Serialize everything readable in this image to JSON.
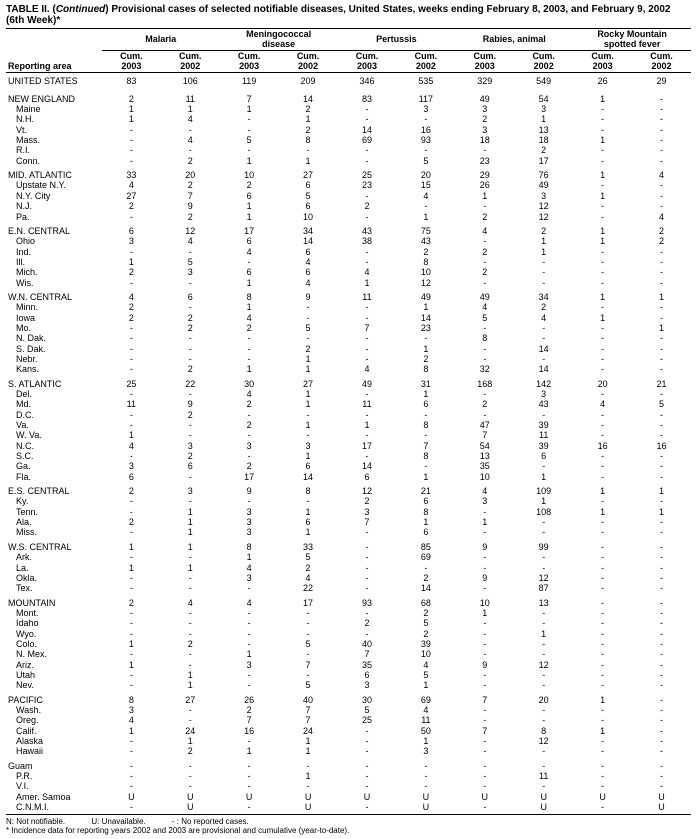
{
  "title_a": "TABLE II. (",
  "title_b": "Continued",
  "title_c": ") Provisional cases of selected notifiable diseases, United States, weeks ending February 8, 2003, and February 9, 2002",
  "title_d": "(6th Week)*",
  "reporting_area": "Reporting area",
  "diseases": [
    "Malaria",
    "Meningococcal disease",
    "Pertussis",
    "Rabies, animal",
    "Rocky Mountain spotted fever"
  ],
  "sub_headers": [
    "Cum. 2003",
    "Cum. 2002"
  ],
  "footnote_a": "N: Not notifiable.",
  "footnote_b": "U: Unavailable.",
  "footnote_c": "- : No reported cases.",
  "footnote_d": "* Incidence data for reporting years 2002 and 2003 are provisional and cumulative (year-to-date).",
  "colw": {
    "area": "14%",
    "col": "8.6%"
  },
  "rows": [
    {
      "g": 2,
      "a": "UNITED STATES",
      "v": [
        "83",
        "106",
        "119",
        "209",
        "346",
        "535",
        "329",
        "549",
        "26",
        "29"
      ]
    },
    {
      "g": 1,
      "a": "NEW ENGLAND",
      "v": [
        "2",
        "11",
        "7",
        "14",
        "83",
        "117",
        "49",
        "54",
        "1",
        "-"
      ]
    },
    {
      "g": 0,
      "a": "Maine",
      "v": [
        "1",
        "1",
        "1",
        "2",
        "-",
        "3",
        "3",
        "3",
        "-",
        "-"
      ]
    },
    {
      "g": 0,
      "a": "N.H.",
      "v": [
        "1",
        "4",
        "-",
        "1",
        "-",
        "-",
        "2",
        "1",
        "-",
        "-"
      ]
    },
    {
      "g": 0,
      "a": "Vt.",
      "v": [
        "-",
        "-",
        "-",
        "2",
        "14",
        "16",
        "3",
        "13",
        "-",
        "-"
      ]
    },
    {
      "g": 0,
      "a": "Mass.",
      "v": [
        "-",
        "4",
        "5",
        "8",
        "69",
        "93",
        "18",
        "18",
        "1",
        "-"
      ]
    },
    {
      "g": 0,
      "a": "R.I.",
      "v": [
        "-",
        "-",
        "-",
        "-",
        "-",
        "-",
        "-",
        "2",
        "-",
        "-"
      ]
    },
    {
      "g": 0,
      "a": "Conn.",
      "v": [
        "-",
        "2",
        "1",
        "1",
        "-",
        "5",
        "23",
        "17",
        "-",
        "-"
      ]
    },
    {
      "g": 1,
      "a": "MID. ATLANTIC",
      "v": [
        "33",
        "20",
        "10",
        "27",
        "25",
        "20",
        "29",
        "76",
        "1",
        "4"
      ]
    },
    {
      "g": 0,
      "a": "Upstate N.Y.",
      "v": [
        "4",
        "2",
        "2",
        "6",
        "23",
        "15",
        "26",
        "49",
        "-",
        "-"
      ]
    },
    {
      "g": 0,
      "a": "N.Y. City",
      "v": [
        "27",
        "7",
        "6",
        "5",
        "-",
        "4",
        "1",
        "3",
        "1",
        "-"
      ]
    },
    {
      "g": 0,
      "a": "N.J.",
      "v": [
        "2",
        "9",
        "1",
        "6",
        "2",
        "-",
        "-",
        "12",
        "-",
        "-"
      ]
    },
    {
      "g": 0,
      "a": "Pa.",
      "v": [
        "-",
        "2",
        "1",
        "10",
        "-",
        "1",
        "2",
        "12",
        "-",
        "4"
      ]
    },
    {
      "g": 1,
      "a": "E.N. CENTRAL",
      "v": [
        "6",
        "12",
        "17",
        "34",
        "43",
        "75",
        "4",
        "2",
        "1",
        "2"
      ]
    },
    {
      "g": 0,
      "a": "Ohio",
      "v": [
        "3",
        "4",
        "6",
        "14",
        "38",
        "43",
        "-",
        "1",
        "1",
        "2"
      ]
    },
    {
      "g": 0,
      "a": "Ind.",
      "v": [
        "-",
        "-",
        "4",
        "6",
        "-",
        "2",
        "2",
        "1",
        "-",
        "-"
      ]
    },
    {
      "g": 0,
      "a": "Ill.",
      "v": [
        "1",
        "5",
        "-",
        "4",
        "-",
        "8",
        "-",
        "-",
        "-",
        "-"
      ]
    },
    {
      "g": 0,
      "a": "Mich.",
      "v": [
        "2",
        "3",
        "6",
        "6",
        "4",
        "10",
        "2",
        "-",
        "-",
        "-"
      ]
    },
    {
      "g": 0,
      "a": "Wis.",
      "v": [
        "-",
        "-",
        "1",
        "4",
        "1",
        "12",
        "-",
        "-",
        "-",
        "-"
      ]
    },
    {
      "g": 1,
      "a": "W.N. CENTRAL",
      "v": [
        "4",
        "6",
        "8",
        "9",
        "11",
        "49",
        "49",
        "34",
        "1",
        "1"
      ]
    },
    {
      "g": 0,
      "a": "Minn.",
      "v": [
        "2",
        "-",
        "1",
        "-",
        "-",
        "1",
        "4",
        "2",
        "-",
        "-"
      ]
    },
    {
      "g": 0,
      "a": "Iowa",
      "v": [
        "2",
        "2",
        "4",
        "-",
        "-",
        "14",
        "5",
        "4",
        "1",
        "-"
      ]
    },
    {
      "g": 0,
      "a": "Mo.",
      "v": [
        "-",
        "2",
        "2",
        "5",
        "7",
        "23",
        "-",
        "-",
        "-",
        "1"
      ]
    },
    {
      "g": 0,
      "a": "N. Dak.",
      "v": [
        "-",
        "-",
        "-",
        "-",
        "-",
        "-",
        "8",
        "-",
        "-",
        "-"
      ]
    },
    {
      "g": 0,
      "a": "S. Dak.",
      "v": [
        "-",
        "-",
        "-",
        "2",
        "-",
        "1",
        "-",
        "14",
        "-",
        "-"
      ]
    },
    {
      "g": 0,
      "a": "Nebr.",
      "v": [
        "-",
        "-",
        "-",
        "1",
        "-",
        "2",
        "-",
        "-",
        "-",
        "-"
      ]
    },
    {
      "g": 0,
      "a": "Kans.",
      "v": [
        "-",
        "2",
        "1",
        "1",
        "4",
        "8",
        "32",
        "14",
        "-",
        "-"
      ]
    },
    {
      "g": 1,
      "a": "S. ATLANTIC",
      "v": [
        "25",
        "22",
        "30",
        "27",
        "49",
        "31",
        "168",
        "142",
        "20",
        "21"
      ]
    },
    {
      "g": 0,
      "a": "Del.",
      "v": [
        "-",
        "-",
        "4",
        "1",
        "-",
        "1",
        "-",
        "3",
        "-",
        "-"
      ]
    },
    {
      "g": 0,
      "a": "Md.",
      "v": [
        "11",
        "9",
        "2",
        "1",
        "11",
        "6",
        "2",
        "43",
        "4",
        "5"
      ]
    },
    {
      "g": 0,
      "a": "D.C.",
      "v": [
        "-",
        "2",
        "-",
        "-",
        "-",
        "-",
        "-",
        "-",
        "-",
        "-"
      ]
    },
    {
      "g": 0,
      "a": "Va.",
      "v": [
        "-",
        "-",
        "2",
        "1",
        "1",
        "8",
        "47",
        "39",
        "-",
        "-"
      ]
    },
    {
      "g": 0,
      "a": "W. Va.",
      "v": [
        "1",
        "-",
        "-",
        "-",
        "-",
        "-",
        "7",
        "11",
        "-",
        "-"
      ]
    },
    {
      "g": 0,
      "a": "N.C.",
      "v": [
        "4",
        "3",
        "3",
        "3",
        "17",
        "7",
        "54",
        "39",
        "16",
        "16"
      ]
    },
    {
      "g": 0,
      "a": "S.C.",
      "v": [
        "-",
        "2",
        "-",
        "1",
        "-",
        "8",
        "13",
        "6",
        "-",
        "-"
      ]
    },
    {
      "g": 0,
      "a": "Ga.",
      "v": [
        "3",
        "6",
        "2",
        "6",
        "14",
        "-",
        "35",
        "-",
        "-",
        "-"
      ]
    },
    {
      "g": 0,
      "a": "Fla.",
      "v": [
        "6",
        "-",
        "17",
        "14",
        "6",
        "1",
        "10",
        "1",
        "-",
        "-"
      ]
    },
    {
      "g": 1,
      "a": "E.S. CENTRAL",
      "v": [
        "2",
        "3",
        "9",
        "8",
        "12",
        "21",
        "4",
        "109",
        "1",
        "1"
      ]
    },
    {
      "g": 0,
      "a": "Ky.",
      "v": [
        "-",
        "-",
        "-",
        "-",
        "2",
        "6",
        "3",
        "1",
        "-",
        "-"
      ]
    },
    {
      "g": 0,
      "a": "Tenn.",
      "v": [
        "-",
        "1",
        "3",
        "1",
        "3",
        "8",
        "-",
        "108",
        "1",
        "1"
      ]
    },
    {
      "g": 0,
      "a": "Ala.",
      "v": [
        "2",
        "1",
        "3",
        "6",
        "7",
        "1",
        "1",
        "-",
        "-",
        "-"
      ]
    },
    {
      "g": 0,
      "a": "Miss.",
      "v": [
        "-",
        "1",
        "3",
        "1",
        "-",
        "6",
        "-",
        "-",
        "-",
        "-"
      ]
    },
    {
      "g": 1,
      "a": "W.S. CENTRAL",
      "v": [
        "1",
        "1",
        "8",
        "33",
        "-",
        "85",
        "9",
        "99",
        "-",
        "-"
      ]
    },
    {
      "g": 0,
      "a": "Ark.",
      "v": [
        "-",
        "-",
        "1",
        "5",
        "-",
        "69",
        "-",
        "-",
        "-",
        "-"
      ]
    },
    {
      "g": 0,
      "a": "La.",
      "v": [
        "1",
        "1",
        "4",
        "2",
        "-",
        "-",
        "-",
        "-",
        "-",
        "-"
      ]
    },
    {
      "g": 0,
      "a": "Okla.",
      "v": [
        "-",
        "-",
        "3",
        "4",
        "-",
        "2",
        "9",
        "12",
        "-",
        "-"
      ]
    },
    {
      "g": 0,
      "a": "Tex.",
      "v": [
        "-",
        "-",
        "-",
        "22",
        "-",
        "14",
        "-",
        "87",
        "-",
        "-"
      ]
    },
    {
      "g": 1,
      "a": "MOUNTAIN",
      "v": [
        "2",
        "4",
        "4",
        "17",
        "93",
        "68",
        "10",
        "13",
        "-",
        "-"
      ]
    },
    {
      "g": 0,
      "a": "Mont.",
      "v": [
        "-",
        "-",
        "-",
        "-",
        "-",
        "2",
        "1",
        "-",
        "-",
        "-"
      ]
    },
    {
      "g": 0,
      "a": "Idaho",
      "v": [
        "-",
        "-",
        "-",
        "-",
        "2",
        "5",
        "-",
        "-",
        "-",
        "-"
      ]
    },
    {
      "g": 0,
      "a": "Wyo.",
      "v": [
        "-",
        "-",
        "-",
        "-",
        "-",
        "2",
        "-",
        "1",
        "-",
        "-"
      ]
    },
    {
      "g": 0,
      "a": "Colo.",
      "v": [
        "1",
        "2",
        "-",
        "5",
        "40",
        "39",
        "-",
        "-",
        "-",
        "-"
      ]
    },
    {
      "g": 0,
      "a": "N. Mex.",
      "v": [
        "-",
        "-",
        "1",
        "-",
        "7",
        "10",
        "-",
        "-",
        "-",
        "-"
      ]
    },
    {
      "g": 0,
      "a": "Ariz.",
      "v": [
        "1",
        "-",
        "3",
        "7",
        "35",
        "4",
        "9",
        "12",
        "-",
        "-"
      ]
    },
    {
      "g": 0,
      "a": "Utah",
      "v": [
        "-",
        "1",
        "-",
        "-",
        "6",
        "5",
        "-",
        "-",
        "-",
        "-"
      ]
    },
    {
      "g": 0,
      "a": "Nev.",
      "v": [
        "-",
        "1",
        "-",
        "5",
        "3",
        "1",
        "-",
        "-",
        "-",
        "-"
      ]
    },
    {
      "g": 1,
      "a": "PACIFIC",
      "v": [
        "8",
        "27",
        "26",
        "40",
        "30",
        "69",
        "7",
        "20",
        "1",
        "-"
      ]
    },
    {
      "g": 0,
      "a": "Wash.",
      "v": [
        "3",
        "-",
        "2",
        "7",
        "5",
        "4",
        "-",
        "-",
        "-",
        "-"
      ]
    },
    {
      "g": 0,
      "a": "Oreg.",
      "v": [
        "4",
        "-",
        "7",
        "7",
        "25",
        "11",
        "-",
        "-",
        "-",
        "-"
      ]
    },
    {
      "g": 0,
      "a": "Calif.",
      "v": [
        "1",
        "24",
        "16",
        "24",
        "-",
        "50",
        "7",
        "8",
        "1",
        "-"
      ]
    },
    {
      "g": 0,
      "a": "Alaska",
      "v": [
        "-",
        "1",
        "-",
        "1",
        "-",
        "1",
        "-",
        "12",
        "-",
        "-"
      ]
    },
    {
      "g": 0,
      "a": "Hawaii",
      "v": [
        "-",
        "2",
        "1",
        "1",
        "-",
        "3",
        "-",
        "-",
        "-",
        "-"
      ]
    },
    {
      "g": 1,
      "a": "Guam",
      "v": [
        "-",
        "-",
        "-",
        "-",
        "-",
        "-",
        "-",
        "-",
        "-",
        "-"
      ]
    },
    {
      "g": 0,
      "a": "P.R.",
      "v": [
        "-",
        "-",
        "-",
        "1",
        "-",
        "-",
        "-",
        "11",
        "-",
        "-"
      ]
    },
    {
      "g": 0,
      "a": "V.I.",
      "v": [
        "-",
        "-",
        "-",
        "-",
        "-",
        "-",
        "-",
        "-",
        "-",
        "-"
      ]
    },
    {
      "g": 0,
      "a": "Amer. Samoa",
      "v": [
        "U",
        "U",
        "U",
        "U",
        "U",
        "U",
        "U",
        "U",
        "U",
        "U"
      ]
    },
    {
      "g": 3,
      "a": "C.N.M.I.",
      "v": [
        "-",
        "U",
        "-",
        "U",
        "-",
        "U",
        "-",
        "U",
        "-",
        "U"
      ]
    }
  ]
}
